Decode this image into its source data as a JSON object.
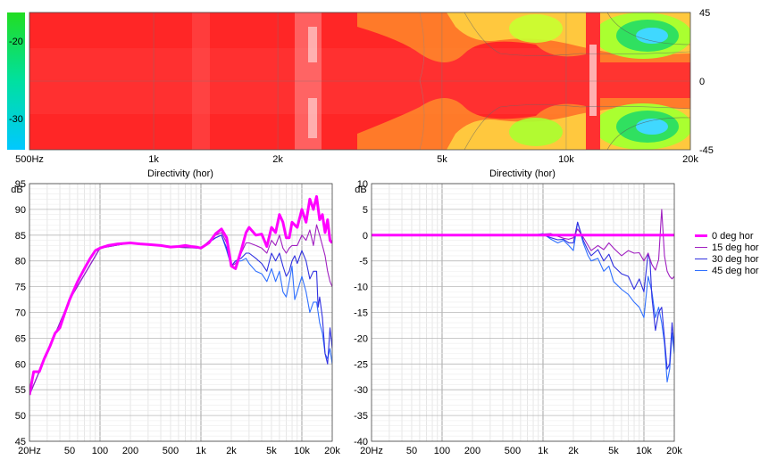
{
  "chart_data": [
    {
      "type": "heatmap",
      "x_ticks": [
        "500Hz",
        "1k",
        "2k",
        "5k",
        "10k",
        "20k"
      ],
      "y_ticks_right": [
        "45",
        "0",
        "-45"
      ],
      "colorbar_ticks": [
        "-20",
        "-30"
      ],
      "x_range_hz": [
        500,
        20000
      ],
      "y_range_deg": [
        -45,
        45
      ],
      "colors": {
        "low": "#00c8ff",
        "mid": "#00e060",
        "high": "#ff2a2a"
      }
    },
    {
      "type": "line",
      "title": "Directivity (hor)",
      "ylabel": "dB",
      "x_ticks": [
        "20Hz",
        "50",
        "100",
        "200",
        "500",
        "1k",
        "2k",
        "5k",
        "10k",
        "20k"
      ],
      "y_ticks": [
        "95",
        "90",
        "85",
        "80",
        "75",
        "70",
        "65",
        "60",
        "55",
        "50",
        "45"
      ],
      "xlim": [
        20,
        20000
      ],
      "ylim": [
        45,
        95
      ],
      "log_x": true,
      "grid": true,
      "series": [
        {
          "name": "0 deg hor",
          "color": "#ff00ff",
          "x": [
            20,
            22,
            25,
            28,
            32,
            36,
            40,
            45,
            50,
            60,
            70,
            80,
            90,
            100,
            120,
            150,
            200,
            250,
            300,
            400,
            500,
            600,
            700,
            800,
            900,
            1000,
            1200,
            1400,
            1600,
            1800,
            2000,
            2200,
            2500,
            2800,
            3000,
            3500,
            4000,
            4500,
            5000,
            5500,
            6000,
            6500,
            7000,
            7500,
            8000,
            9000,
            10000,
            11000,
            12000,
            13000,
            14000,
            15000,
            16000,
            17000,
            18000,
            19000,
            20000
          ],
          "y": [
            54,
            58.5,
            58.5,
            61,
            63.5,
            66,
            67,
            70,
            72.5,
            76,
            78.5,
            80.5,
            82,
            82.5,
            83,
            83.3,
            83.5,
            83.3,
            83.2,
            83,
            82.7,
            82.8,
            83,
            82.8,
            82.7,
            82.5,
            83.5,
            85.3,
            86.2,
            84.5,
            79,
            78.5,
            82,
            85.5,
            86.5,
            85,
            85.2,
            82.8,
            86.5,
            85.5,
            89,
            87.5,
            84.5,
            84.5,
            87.5,
            86.5,
            90,
            87.5,
            92,
            90,
            92.5,
            88,
            89,
            85.5,
            88,
            84,
            83.5
          ]
        },
        {
          "name": "15 deg hor",
          "color": "#a020c0",
          "x": [
            20,
            50,
            100,
            200,
            500,
            1000,
            1400,
            1600,
            1800,
            2000,
            2200,
            2500,
            2800,
            3000,
            3500,
            4000,
            4500,
            5000,
            5500,
            6000,
            6500,
            7000,
            7500,
            8000,
            9000,
            10000,
            11000,
            12000,
            13000,
            14000,
            15000,
            16000,
            17000,
            18000,
            19000,
            20000
          ],
          "y": [
            54,
            72.5,
            82.5,
            83.5,
            82.7,
            82.5,
            85,
            85.5,
            83.5,
            79,
            79.5,
            81.5,
            83.5,
            83.5,
            83,
            82.5,
            81.5,
            84,
            83,
            85,
            82.5,
            81.5,
            82.5,
            83,
            83,
            85,
            84,
            86,
            83,
            87,
            85,
            83,
            81,
            78,
            76,
            75
          ]
        },
        {
          "name": "30 deg hor",
          "color": "#3030e0",
          "x": [
            20,
            50,
            100,
            200,
            500,
            1000,
            1400,
            1600,
            1800,
            2000,
            2200,
            2500,
            2800,
            3000,
            3500,
            4000,
            4500,
            5000,
            5500,
            6000,
            6500,
            7000,
            7500,
            8000,
            8500,
            9000,
            10000,
            11000,
            12000,
            13000,
            14000,
            14500,
            15000,
            16000,
            17000,
            18000,
            19000,
            20000
          ],
          "y": [
            54,
            72.5,
            82.5,
            83.5,
            82.7,
            82.5,
            84.5,
            85,
            82.5,
            79,
            80,
            80.5,
            81.5,
            81.5,
            80.5,
            79.5,
            78,
            81.5,
            80,
            81.5,
            79,
            77,
            78,
            80,
            81,
            79.5,
            82,
            80,
            76.5,
            78,
            78,
            71,
            73,
            69,
            62,
            60,
            67,
            63
          ]
        },
        {
          "name": "45 deg hor",
          "color": "#3070ff",
          "x": [
            20,
            50,
            100,
            200,
            500,
            1000,
            1400,
            1600,
            1800,
            2000,
            2200,
            2500,
            2800,
            3000,
            3500,
            4000,
            4500,
            5000,
            5500,
            6000,
            6500,
            7000,
            7500,
            8000,
            8500,
            9000,
            10000,
            11000,
            12000,
            13000,
            14000,
            15000,
            16000,
            17000,
            18000,
            19000,
            20000
          ],
          "y": [
            54,
            72.5,
            82.5,
            83.5,
            82.7,
            82.5,
            84.5,
            85,
            82,
            79,
            80,
            80,
            80.5,
            79.5,
            78,
            77.5,
            76,
            78.5,
            76,
            78,
            74,
            73,
            76,
            79,
            72.5,
            74,
            77,
            74,
            70,
            72,
            72,
            68,
            66,
            62,
            61,
            63,
            60
          ]
        }
      ]
    },
    {
      "type": "line",
      "title": "Directivity (hor)",
      "ylabel": "dB",
      "x_ticks": [
        "20Hz",
        "50",
        "100",
        "200",
        "500",
        "1k",
        "2k",
        "5k",
        "10k",
        "20k"
      ],
      "y_ticks": [
        "10",
        "5",
        "0",
        "-5",
        "-10",
        "-15",
        "-20",
        "-25",
        "-30",
        "-35",
        "-40"
      ],
      "xlim": [
        20,
        20000
      ],
      "ylim": [
        -40,
        10
      ],
      "log_x": true,
      "grid": true,
      "series": [
        {
          "name": "0 deg hor",
          "color": "#ff00ff",
          "x": [
            20,
            20000
          ],
          "y": [
            0,
            0
          ]
        },
        {
          "name": "15 deg hor",
          "color": "#a020c0",
          "x": [
            20,
            800,
            1000,
            1200,
            1400,
            1600,
            1800,
            2000,
            2200,
            2500,
            2800,
            3000,
            3500,
            4000,
            4500,
            5000,
            6000,
            7000,
            8000,
            9000,
            10000,
            11000,
            12000,
            13000,
            14000,
            15000,
            16000,
            17000,
            18000,
            19000,
            20000
          ],
          "y": [
            0,
            0,
            0.2,
            0.3,
            -0.2,
            -0.6,
            -0.8,
            -0.5,
            1.2,
            -0.4,
            -2,
            -3,
            -2,
            -2.8,
            -1.5,
            -2.5,
            -4,
            -3,
            -3.5,
            -3.4,
            -5,
            -3.5,
            -5.7,
            -6.8,
            -4.7,
            5,
            -4,
            -7,
            -8,
            -8.5,
            -8
          ]
        },
        {
          "name": "30 deg hor",
          "color": "#3030e0",
          "x": [
            20,
            800,
            1000,
            1200,
            1400,
            1600,
            1800,
            2000,
            2200,
            2500,
            2800,
            3000,
            3500,
            4000,
            4500,
            5000,
            6000,
            7000,
            8000,
            9000,
            10000,
            11000,
            11500,
            12000,
            13000,
            14000,
            15000,
            16000,
            17000,
            18000,
            19000,
            20000
          ],
          "y": [
            0,
            0,
            0.1,
            -0.5,
            -0.9,
            -0.8,
            -1.5,
            -1.5,
            2.5,
            -1,
            -3,
            -4,
            -2.8,
            -5,
            -3.7,
            -6,
            -7.5,
            -8,
            -10.5,
            -8.5,
            -11,
            -3.5,
            -5,
            -12,
            -18.5,
            -15,
            -14,
            -20,
            -26,
            -25,
            -17,
            -22
          ]
        },
        {
          "name": "45 deg hor",
          "color": "#3070ff",
          "x": [
            20,
            800,
            1000,
            1200,
            1400,
            1600,
            1800,
            2000,
            2200,
            2500,
            2800,
            3000,
            3500,
            4000,
            4500,
            5000,
            6000,
            7000,
            8000,
            9000,
            10000,
            11000,
            12000,
            13000,
            14000,
            15000,
            16000,
            17000,
            18000,
            19000,
            20000
          ],
          "y": [
            0,
            0,
            0.3,
            -0.8,
            -1.5,
            -1,
            -2,
            -3,
            2.5,
            -1.5,
            -4,
            -5,
            -4.5,
            -7,
            -6,
            -9,
            -10.5,
            -11.5,
            -13,
            -14,
            -16,
            -8,
            -11,
            -16,
            -14,
            -17,
            -21,
            -28.5,
            -26,
            -19,
            -23
          ]
        }
      ]
    }
  ]
}
